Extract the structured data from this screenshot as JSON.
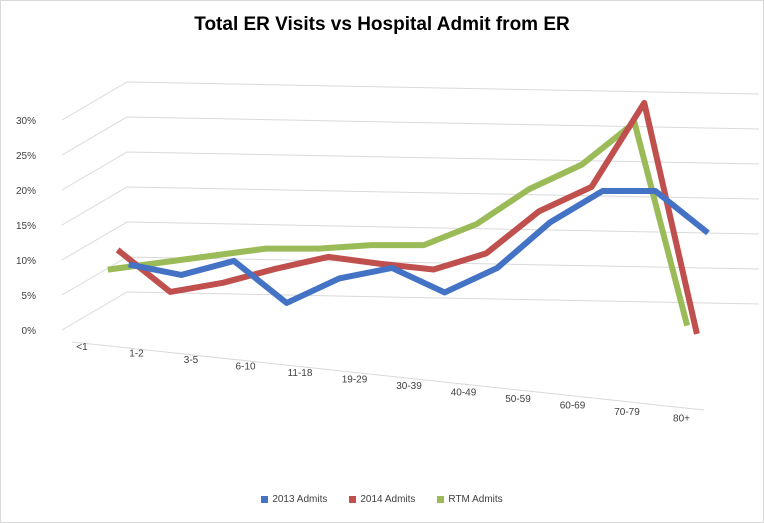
{
  "chart_data": {
    "type": "line",
    "title": "Total ER Visits vs Hospital Admit from ER",
    "categories": [
      "<1",
      "1-2",
      "3-5",
      "6-10",
      "11-18",
      "19-29",
      "30-39",
      "40-49",
      "50-59",
      "60-69",
      "70-79",
      "80+"
    ],
    "y_ticks": [
      "0%",
      "5%",
      "10%",
      "15%",
      "20%",
      "25%",
      "30%"
    ],
    "ylim": [
      0,
      30
    ],
    "grid": true,
    "legend_position": "bottom",
    "series": [
      {
        "name": "2013 Admits",
        "color": "#4472c4",
        "values": [
          6,
          4.5,
          6.5,
          0.5,
          4,
          5.5,
          2,
          5.5,
          12,
          16.5,
          16.5,
          10.5
        ]
      },
      {
        "name": "2014 Admits",
        "color": "#c0504d",
        "values": [
          9,
          3,
          4.3,
          6.3,
          8,
          7,
          6.2,
          8.5,
          14.5,
          18,
          30,
          -3
        ]
      },
      {
        "name": "RTM Admits",
        "color": "#9bbb59",
        "values": [
          7,
          8,
          9,
          10,
          10,
          10.5,
          10.5,
          13.5,
          18.5,
          22,
          28,
          -1
        ]
      }
    ]
  }
}
